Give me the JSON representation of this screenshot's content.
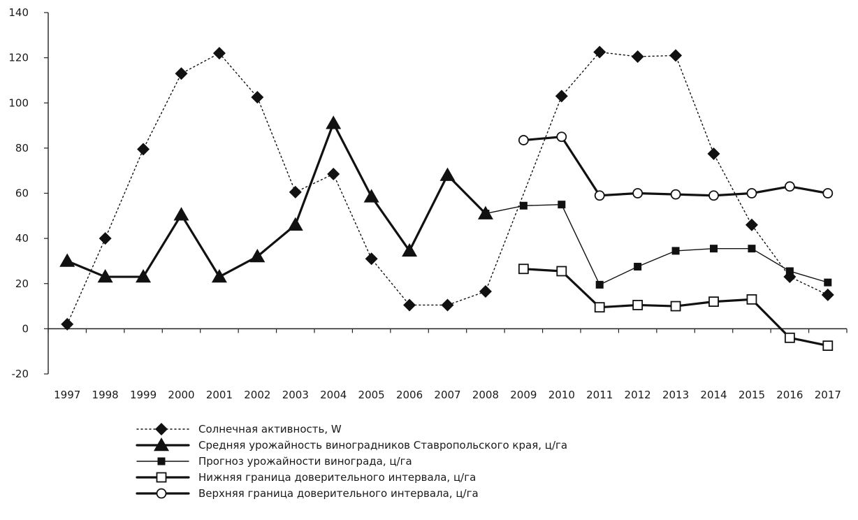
{
  "chart_data": {
    "type": "line",
    "title": "",
    "xlabel": "",
    "ylabel": "",
    "ylim": [
      -20,
      140
    ],
    "yticks": [
      -20,
      0,
      20,
      40,
      60,
      80,
      100,
      120,
      140
    ],
    "categories": [
      "1997",
      "1998",
      "1999",
      "2000",
      "2001",
      "2002",
      "2003",
      "2004",
      "2005",
      "2006",
      "2007",
      "2008",
      "2009",
      "2010",
      "2011",
      "2012",
      "2013",
      "2014",
      "2015",
      "2016",
      "2017"
    ],
    "grid": false,
    "legend_position": "bottom",
    "series": [
      {
        "name": "Солнечная активность, W",
        "style": "dotted",
        "marker": "diamond",
        "weight": "thin",
        "values": [
          2,
          40,
          79.5,
          113,
          122,
          102.5,
          60.5,
          68.5,
          31,
          10.5,
          10.5,
          16.5,
          null,
          103,
          122.5,
          120.5,
          121,
          77.5,
          46,
          23,
          15
        ]
      },
      {
        "name": "Средняя урожайность виноградников Ставропольского края, ц/га",
        "style": "solid",
        "marker": "triangle",
        "weight": "thick",
        "values": [
          30,
          23,
          23,
          50.5,
          23,
          32,
          46,
          91,
          58.5,
          34.5,
          68,
          51,
          null,
          null,
          null,
          null,
          null,
          null,
          null,
          null,
          null
        ]
      },
      {
        "name": "Прогноз урожайности винограда, ц/га",
        "style": "solid",
        "marker": "square-filled",
        "weight": "thin",
        "values": [
          null,
          null,
          null,
          null,
          null,
          null,
          null,
          null,
          null,
          null,
          null,
          51,
          54.5,
          55,
          19.5,
          27.5,
          34.5,
          35.5,
          35.5,
          25.5,
          20.5
        ]
      },
      {
        "name": "Нижняя граница доверительного интервала, ц/га",
        "style": "solid",
        "marker": "square-open",
        "weight": "thick",
        "values": [
          null,
          null,
          null,
          null,
          null,
          null,
          null,
          null,
          null,
          null,
          null,
          null,
          26.5,
          25.5,
          9.5,
          10.5,
          10,
          12,
          13,
          -4,
          -7.5
        ]
      },
      {
        "name": "Верхняя граница доверительного интервала, ц/га",
        "style": "solid",
        "marker": "circle-open",
        "weight": "thick",
        "values": [
          null,
          null,
          null,
          null,
          null,
          null,
          null,
          null,
          null,
          null,
          null,
          null,
          83.5,
          85,
          59,
          60,
          59.5,
          59,
          60,
          63,
          60
        ]
      }
    ]
  }
}
